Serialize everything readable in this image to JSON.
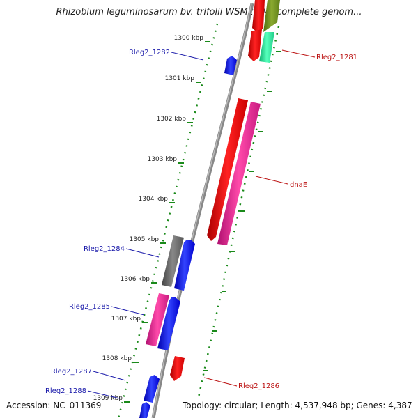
{
  "title": "Rhizobium leguminosarum bv. trifolii WSM2304, complete genom...",
  "footer": {
    "accession": "Accession: NC_011369",
    "summary": "Topology: circular; Length: 4,537,948 bp; Genes: 4,387"
  },
  "colors": {
    "backbone": "#888888",
    "tick_green": "#1a8a1a",
    "blue_label": "#1a1aaa",
    "red_label": "#bb1111",
    "gene_blue": "#0000ee",
    "gene_red": "#ee0000",
    "gene_magenta": "#ee1c8c",
    "gene_gray": "#666666",
    "gene_olive": "#6e8e1e",
    "gene_mint": "#22dd99"
  },
  "ticks": [
    {
      "label": "1300 kbp",
      "kbp": 1300
    },
    {
      "label": "1301 kbp",
      "kbp": 1301
    },
    {
      "label": "1302 kbp",
      "kbp": 1302
    },
    {
      "label": "1303 kbp",
      "kbp": 1303
    },
    {
      "label": "1304 kbp",
      "kbp": 1304
    },
    {
      "label": "1305 kbp",
      "kbp": 1305
    },
    {
      "label": "1306 kbp",
      "kbp": 1306
    },
    {
      "label": "1307 kbp",
      "kbp": 1307
    },
    {
      "label": "1308 kbp",
      "kbp": 1308
    },
    {
      "label": "1309 kbp",
      "kbp": 1309
    }
  ],
  "gene_labels": [
    {
      "name": "Rleg2_1282",
      "side": "left",
      "color": "blue"
    },
    {
      "name": "Rleg2_1281",
      "side": "right",
      "color": "red"
    },
    {
      "name": "dnaE",
      "side": "right",
      "color": "red"
    },
    {
      "name": "Rleg2_1284",
      "side": "left",
      "color": "blue"
    },
    {
      "name": "Rleg2_1285",
      "side": "left",
      "color": "blue"
    },
    {
      "name": "Rleg2_1287",
      "side": "left",
      "color": "blue"
    },
    {
      "name": "Rleg2_1288",
      "side": "left",
      "color": "blue"
    },
    {
      "name": "Rleg2_1286",
      "side": "right",
      "color": "red"
    }
  ]
}
